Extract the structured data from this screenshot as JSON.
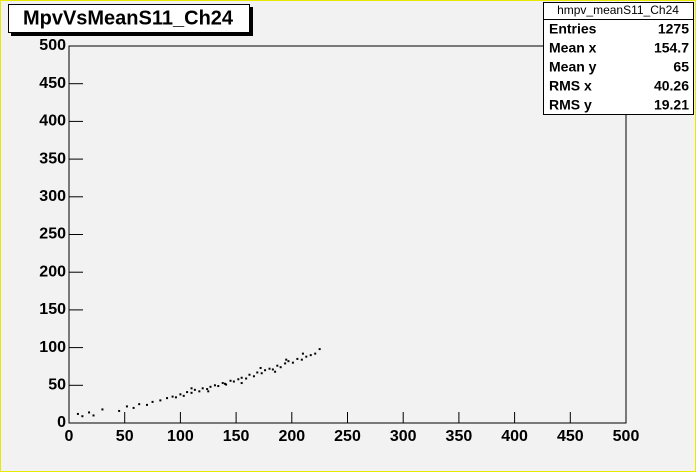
{
  "chart_data": {
    "type": "scatter",
    "title": "MpvVsMeanS11_Ch24",
    "x": [
      8,
      12,
      18,
      22,
      30,
      45,
      52,
      58,
      63,
      70,
      75,
      82,
      88,
      93,
      96,
      100,
      103,
      106,
      110,
      113,
      117,
      120,
      124,
      127,
      131,
      134,
      138,
      141,
      145,
      148,
      152,
      155,
      159,
      162,
      166,
      169,
      173,
      176,
      180,
      183,
      187,
      190,
      194,
      197,
      201,
      205,
      209,
      213,
      217,
      221,
      225,
      155,
      172,
      195,
      110,
      140,
      185,
      210,
      125
    ],
    "y": [
      12,
      9,
      14,
      10,
      18,
      16,
      22,
      20,
      25,
      24,
      28,
      30,
      33,
      35,
      34,
      38,
      36,
      41,
      40,
      44,
      42,
      46,
      45,
      48,
      50,
      49,
      53,
      51,
      56,
      55,
      58,
      60,
      59,
      64,
      62,
      67,
      66,
      70,
      72,
      71,
      76,
      74,
      79,
      82,
      80,
      85,
      84,
      88,
      90,
      92,
      98,
      53,
      73,
      84,
      46,
      52,
      68,
      92,
      42
    ],
    "color": "#000000",
    "xlim": [
      0,
      500
    ],
    "xticks": [
      0,
      50,
      100,
      150,
      200,
      250,
      300,
      350,
      400,
      450,
      500
    ],
    "ylim": [
      0,
      500
    ],
    "yticks": [
      0,
      50,
      100,
      150,
      200,
      250,
      300,
      350,
      400,
      450,
      500
    ],
    "stats": {
      "title": "hmpv_meanS11_Ch24",
      "rows": [
        {
          "label": "Entries",
          "value": 1275
        },
        {
          "label": "Mean x",
          "value": 154.7
        },
        {
          "label": "Mean y",
          "value": 65
        },
        {
          "label": "RMS x",
          "value": 40.26
        },
        {
          "label": "RMS y",
          "value": 19.21
        }
      ]
    }
  }
}
